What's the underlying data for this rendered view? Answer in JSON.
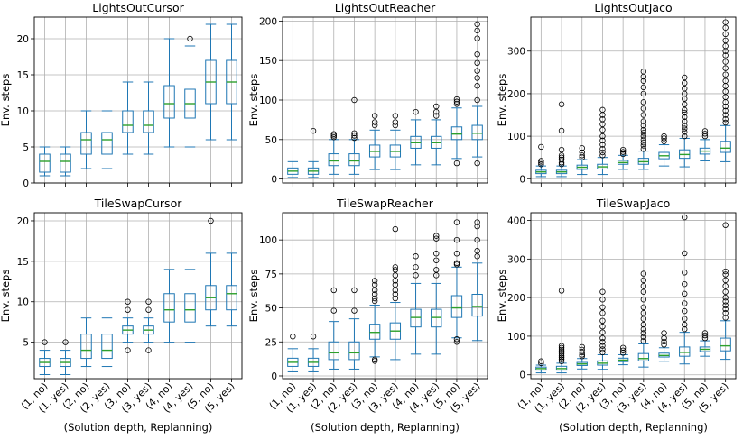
{
  "figure": {
    "xlabel": "(Solution depth, Replanning)",
    "ylabel": "Env. steps",
    "categories": [
      "(1, no)",
      "(1, yes)",
      "(2, no)",
      "(2, yes)",
      "(3, no)",
      "(3, yes)",
      "(4, no)",
      "(4, yes)",
      "(5, no)",
      "(5, yes)"
    ]
  },
  "chart_data": [
    {
      "type": "boxplot",
      "title": "LightsOutCursor",
      "ylabel": "Env. steps",
      "ylim": [
        0,
        23
      ],
      "yticks": [
        0,
        5,
        10,
        15,
        20
      ],
      "boxes": [
        {
          "min": 1,
          "q1": 1.5,
          "median": 3,
          "q3": 4,
          "max": 5,
          "outliers": []
        },
        {
          "min": 1,
          "q1": 1.5,
          "median": 3,
          "q3": 4,
          "max": 5,
          "outliers": []
        },
        {
          "min": 2,
          "q1": 4,
          "median": 6,
          "q3": 7,
          "max": 10,
          "outliers": []
        },
        {
          "min": 2,
          "q1": 4,
          "median": 6,
          "q3": 7,
          "max": 10,
          "outliers": []
        },
        {
          "min": 4,
          "q1": 7,
          "median": 8,
          "q3": 10,
          "max": 14,
          "outliers": []
        },
        {
          "min": 4,
          "q1": 7,
          "median": 8,
          "q3": 10,
          "max": 14,
          "outliers": []
        },
        {
          "min": 5,
          "q1": 9,
          "median": 11,
          "q3": 13.5,
          "max": 20,
          "outliers": []
        },
        {
          "min": 5,
          "q1": 9,
          "median": 11,
          "q3": 13,
          "max": 19,
          "outliers": [
            20
          ]
        },
        {
          "min": 6,
          "q1": 11,
          "median": 14,
          "q3": 17,
          "max": 22,
          "outliers": []
        },
        {
          "min": 6,
          "q1": 11,
          "median": 14,
          "q3": 17,
          "max": 22,
          "outliers": []
        }
      ]
    },
    {
      "type": "boxplot",
      "title": "LightsOutReacher",
      "ylabel": "Env. steps",
      "ylim": [
        -5,
        205
      ],
      "yticks": [
        0,
        50,
        100,
        150,
        200
      ],
      "boxes": [
        {
          "min": 2,
          "q1": 6,
          "median": 10,
          "q3": 14,
          "max": 22,
          "outliers": []
        },
        {
          "min": 2,
          "q1": 6,
          "median": 10,
          "q3": 14,
          "max": 22,
          "outliers": [
            61
          ]
        },
        {
          "min": 6,
          "q1": 17,
          "median": 23,
          "q3": 32,
          "max": 50,
          "outliers": [
            53,
            55,
            57
          ]
        },
        {
          "min": 6,
          "q1": 17,
          "median": 23,
          "q3": 32,
          "max": 50,
          "outliers": [
            52,
            55,
            58,
            100
          ]
        },
        {
          "min": 12,
          "q1": 28,
          "median": 35,
          "q3": 43,
          "max": 62,
          "outliers": [
            68,
            72,
            80
          ]
        },
        {
          "min": 12,
          "q1": 28,
          "median": 35,
          "q3": 43,
          "max": 62,
          "outliers": [
            68,
            72,
            80
          ]
        },
        {
          "min": 18,
          "q1": 39,
          "median": 46,
          "q3": 54,
          "max": 75,
          "outliers": [
            85
          ]
        },
        {
          "min": 18,
          "q1": 39,
          "median": 46,
          "q3": 54,
          "max": 75,
          "outliers": [
            80,
            85,
            92
          ]
        },
        {
          "min": 26,
          "q1": 50,
          "median": 57,
          "q3": 66,
          "max": 90,
          "outliers": [
            20,
            95,
            98,
            101
          ]
        },
        {
          "min": 28,
          "q1": 50,
          "median": 58,
          "q3": 68,
          "max": 92,
          "outliers": [
            100,
            118,
            128,
            137,
            147,
            158,
            178,
            188,
            196,
            20
          ]
        }
      ]
    },
    {
      "type": "boxplot",
      "title": "LightsOutJaco",
      "ylabel": "Env. steps",
      "ylim": [
        -10,
        380
      ],
      "yticks": [
        0,
        100,
        200,
        300
      ],
      "boxes": [
        {
          "min": 5,
          "q1": 12,
          "median": 16,
          "q3": 20,
          "max": 30,
          "outliers": [
            34,
            38,
            42,
            75
          ]
        },
        {
          "min": 5,
          "q1": 12,
          "median": 16,
          "q3": 20,
          "max": 30,
          "outliers": [
            34,
            38,
            45,
            50,
            55,
            68,
            113,
            175
          ]
        },
        {
          "min": 10,
          "q1": 22,
          "median": 27,
          "q3": 32,
          "max": 45,
          "outliers": [
            50,
            55,
            62,
            72
          ]
        },
        {
          "min": 10,
          "q1": 23,
          "median": 28,
          "q3": 34,
          "max": 50,
          "outliers": [
            55,
            62,
            70,
            80,
            90,
            100,
            115,
            128,
            140,
            150,
            162
          ]
        },
        {
          "min": 22,
          "q1": 34,
          "median": 38,
          "q3": 43,
          "max": 55,
          "outliers": [
            58,
            63,
            68
          ]
        },
        {
          "min": 22,
          "q1": 34,
          "median": 40,
          "q3": 48,
          "max": 65,
          "outliers": [
            70,
            78,
            85,
            92,
            100,
            108,
            115,
            125,
            135,
            150,
            165,
            180,
            200,
            215,
            230,
            240,
            252
          ]
        },
        {
          "min": 30,
          "q1": 47,
          "median": 54,
          "q3": 62,
          "max": 80,
          "outliers": [
            88,
            95,
            100
          ]
        },
        {
          "min": 28,
          "q1": 48,
          "median": 57,
          "q3": 68,
          "max": 95,
          "outliers": [
            100,
            110,
            118,
            125,
            135,
            145,
            155,
            162,
            175,
            188,
            200,
            212,
            225,
            238
          ]
        },
        {
          "min": 42,
          "q1": 58,
          "median": 65,
          "q3": 72,
          "max": 92,
          "outliers": [
            100,
            106,
            112
          ]
        },
        {
          "min": 40,
          "q1": 62,
          "median": 72,
          "q3": 88,
          "max": 125,
          "outliers": [
            132,
            140,
            150,
            160,
            170,
            180,
            192,
            205,
            218,
            230,
            245,
            260,
            275,
            290,
            300,
            312,
            325,
            340,
            355,
            368
          ]
        }
      ]
    },
    {
      "type": "boxplot",
      "title": "TileSwapCursor",
      "ylabel": "Env. steps",
      "ylim": [
        0.5,
        21
      ],
      "yticks": [
        5,
        10,
        15,
        20
      ],
      "boxes": [
        {
          "min": 1,
          "q1": 2,
          "median": 2.5,
          "q3": 3,
          "max": 4,
          "outliers": [
            5
          ]
        },
        {
          "min": 1,
          "q1": 2,
          "median": 2.5,
          "q3": 3,
          "max": 4,
          "outliers": [
            5
          ]
        },
        {
          "min": 2,
          "q1": 3,
          "median": 4,
          "q3": 6,
          "max": 8,
          "outliers": []
        },
        {
          "min": 2,
          "q1": 3,
          "median": 4,
          "q3": 6,
          "max": 8,
          "outliers": []
        },
        {
          "min": 5,
          "q1": 6,
          "median": 6.5,
          "q3": 7,
          "max": 8,
          "outliers": [
            4,
            9,
            10
          ]
        },
        {
          "min": 5,
          "q1": 6,
          "median": 6.5,
          "q3": 7,
          "max": 8,
          "outliers": [
            4,
            9,
            10
          ]
        },
        {
          "min": 5,
          "q1": 7.5,
          "median": 9,
          "q3": 11,
          "max": 14,
          "outliers": []
        },
        {
          "min": 5,
          "q1": 7.5,
          "median": 9,
          "q3": 11,
          "max": 14,
          "outliers": []
        },
        {
          "min": 7,
          "q1": 9,
          "median": 10.5,
          "q3": 12,
          "max": 16,
          "outliers": [
            20
          ]
        },
        {
          "min": 7,
          "q1": 9,
          "median": 11,
          "q3": 12,
          "max": 16,
          "outliers": []
        }
      ]
    },
    {
      "type": "boxplot",
      "title": "TileSwapReacher",
      "ylabel": "Env. steps",
      "ylim": [
        -2,
        120
      ],
      "yticks": [
        0,
        25,
        50,
        75,
        100
      ],
      "boxes": [
        {
          "min": 3,
          "q1": 7,
          "median": 10,
          "q3": 13,
          "max": 20,
          "outliers": [
            29
          ]
        },
        {
          "min": 3,
          "q1": 7,
          "median": 10,
          "q3": 13,
          "max": 20,
          "outliers": [
            29
          ]
        },
        {
          "min": 5,
          "q1": 12,
          "median": 17,
          "q3": 25,
          "max": 40,
          "outliers": [
            48,
            63
          ]
        },
        {
          "min": 5,
          "q1": 12,
          "median": 17,
          "q3": 25,
          "max": 42,
          "outliers": [
            48,
            63
          ]
        },
        {
          "min": 14,
          "q1": 27,
          "median": 32,
          "q3": 38,
          "max": 52,
          "outliers": [
            11,
            12,
            55,
            57,
            60,
            63,
            67,
            70
          ]
        },
        {
          "min": 12,
          "q1": 27,
          "median": 33,
          "q3": 39,
          "max": 54,
          "outliers": [
            57,
            60,
            63,
            67,
            70,
            74,
            78,
            80,
            108
          ]
        },
        {
          "min": 16,
          "q1": 36,
          "median": 43,
          "q3": 49,
          "max": 68,
          "outliers": [
            74,
            80,
            88
          ]
        },
        {
          "min": 16,
          "q1": 36,
          "median": 43,
          "q3": 49,
          "max": 68,
          "outliers": [
            74,
            78,
            85,
            90,
            101,
            103
          ]
        },
        {
          "min": 28,
          "q1": 43,
          "median": 50,
          "q3": 59,
          "max": 80,
          "outliers": [
            25,
            27,
            82,
            83,
            90,
            100,
            113
          ]
        },
        {
          "min": 26,
          "q1": 44,
          "median": 51,
          "q3": 60,
          "max": 83,
          "outliers": [
            88,
            92,
            100,
            110,
            113
          ]
        }
      ]
    },
    {
      "type": "boxplot",
      "title": "TileSwapJaco",
      "ylabel": "Env. steps",
      "ylim": [
        -10,
        420
      ],
      "yticks": [
        0,
        100,
        200,
        300,
        400
      ],
      "boxes": [
        {
          "min": 5,
          "q1": 12,
          "median": 16,
          "q3": 20,
          "max": 25,
          "outliers": [
            30,
            35
          ]
        },
        {
          "min": 5,
          "q1": 12,
          "median": 16,
          "q3": 22,
          "max": 30,
          "outliers": [
            35,
            40,
            45,
            50,
            55,
            60,
            65,
            70,
            75,
            218
          ]
        },
        {
          "min": 15,
          "q1": 24,
          "median": 28,
          "q3": 32,
          "max": 42,
          "outliers": [
            48,
            52,
            58,
            65,
            72
          ]
        },
        {
          "min": 14,
          "q1": 25,
          "median": 30,
          "q3": 36,
          "max": 52,
          "outliers": [
            58,
            66,
            75,
            85,
            95,
            110,
            125,
            140,
            160,
            175,
            195,
            215
          ]
        },
        {
          "min": 26,
          "q1": 34,
          "median": 38,
          "q3": 43,
          "max": 52,
          "outliers": [
            57,
            63,
            70
          ]
        },
        {
          "min": 20,
          "q1": 36,
          "median": 42,
          "q3": 55,
          "max": 80,
          "outliers": [
            88,
            98,
            108,
            118,
            130,
            145,
            160,
            175,
            195,
            215,
            230,
            245,
            262
          ]
        },
        {
          "min": 35,
          "q1": 46,
          "median": 50,
          "q3": 56,
          "max": 70,
          "outliers": [
            78,
            86,
            95,
            108
          ]
        },
        {
          "min": 28,
          "q1": 48,
          "median": 58,
          "q3": 72,
          "max": 110,
          "outliers": [
            118,
            130,
            145,
            165,
            185,
            210,
            235,
            265,
            315,
            408
          ]
        },
        {
          "min": 48,
          "q1": 60,
          "median": 66,
          "q3": 72,
          "max": 88,
          "outliers": [
            95,
            102,
            108
          ]
        },
        {
          "min": 40,
          "q1": 62,
          "median": 75,
          "q3": 95,
          "max": 140,
          "outliers": [
            148,
            160,
            170,
            180,
            190,
            200,
            215,
            230,
            245,
            260,
            268,
            388
          ]
        }
      ]
    }
  ]
}
